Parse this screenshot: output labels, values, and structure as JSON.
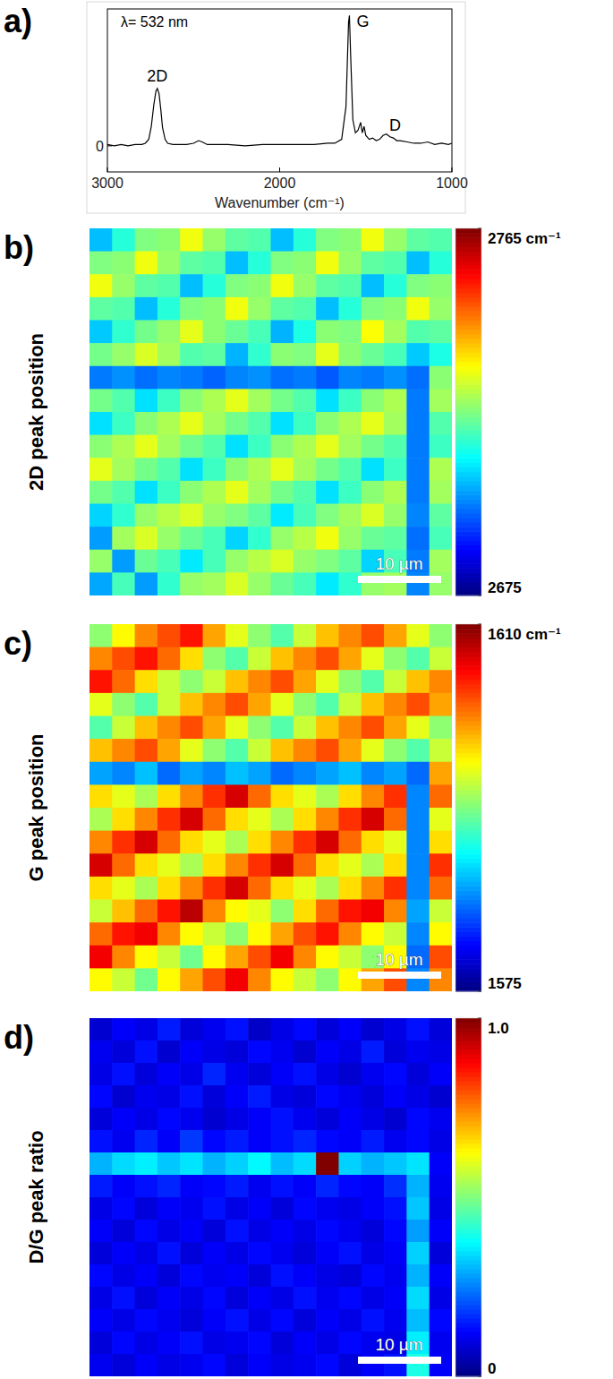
{
  "chart_data": [
    {
      "type": "line",
      "panel": "a)",
      "title": "λ= 532 nm",
      "xlabel": "Wavenumber (cm⁻¹)",
      "color": "#000000",
      "x": [
        3000,
        2960,
        2920,
        2880,
        2840,
        2800,
        2780,
        2760,
        2745,
        2730,
        2718,
        2710,
        2700,
        2690,
        2680,
        2665,
        2650,
        2620,
        2580,
        2540,
        2500,
        2470,
        2450,
        2420,
        2380,
        2300,
        2200,
        2100,
        2000,
        1900,
        1800,
        1720,
        1680,
        1640,
        1615,
        1600,
        1595,
        1588,
        1575,
        1560,
        1545,
        1530,
        1520,
        1510,
        1500,
        1480,
        1460,
        1440,
        1420,
        1400,
        1380,
        1360,
        1340,
        1320,
        1300,
        1260,
        1220,
        1180,
        1140,
        1100,
        1060,
        1020,
        1000
      ],
      "values": [
        0.01,
        0.0,
        0.01,
        0.0,
        0.01,
        0.01,
        0.02,
        0.05,
        0.15,
        0.32,
        0.42,
        0.44,
        0.4,
        0.28,
        0.14,
        0.05,
        0.02,
        0.01,
        0.01,
        0.01,
        0.02,
        0.04,
        0.03,
        0.01,
        0.01,
        0.01,
        0.0,
        0.01,
        0.01,
        0.01,
        0.01,
        0.02,
        0.02,
        0.05,
        0.3,
        0.95,
        1.0,
        0.7,
        0.2,
        0.1,
        0.12,
        0.18,
        0.1,
        0.15,
        0.08,
        0.05,
        0.06,
        0.04,
        0.05,
        0.08,
        0.09,
        0.07,
        0.06,
        0.04,
        0.04,
        0.03,
        0.02,
        0.02,
        0.03,
        0.01,
        0.02,
        0.01,
        0.02
      ],
      "xlim": [
        3000,
        1000
      ],
      "xticks": [
        3000,
        2000,
        1000
      ],
      "ylim": [
        -0.2,
        1.05
      ],
      "yticks": [
        0
      ],
      "annotations": [
        {
          "text": "2D",
          "x": 2710
        },
        {
          "text": "G",
          "x": 1595
        },
        {
          "text": "D",
          "x": 1330
        }
      ]
    },
    {
      "type": "heatmap",
      "panel": "b)",
      "ylabel": "2D peak position",
      "scale_bar": "10 µm",
      "colorbar": {
        "range": [
          2675,
          2765
        ],
        "ticks": [
          {
            "value": 2765,
            "label": "2765 cm⁻¹"
          },
          2675
        ]
      },
      "cells": [
        [
          2703,
          2712,
          2720,
          2721,
          2730,
          2722,
          2717,
          2716,
          2703,
          2712,
          2720,
          2721,
          2730,
          2722,
          2717,
          2716
        ],
        [
          2720,
          2721,
          2730,
          2722,
          2717,
          2716,
          2703,
          2712,
          2720,
          2721,
          2730,
          2722,
          2717,
          2716,
          2703,
          2712
        ],
        [
          2730,
          2722,
          2717,
          2716,
          2703,
          2712,
          2720,
          2721,
          2730,
          2722,
          2717,
          2716,
          2703,
          2712,
          2720,
          2721
        ],
        [
          2717,
          2716,
          2703,
          2712,
          2720,
          2721,
          2730,
          2722,
          2717,
          2716,
          2703,
          2712,
          2720,
          2721,
          2730,
          2722
        ],
        [
          2704,
          2713,
          2719,
          2722,
          2729,
          2721,
          2718,
          2715,
          2702,
          2711,
          2721,
          2720,
          2731,
          2723,
          2716,
          2717
        ],
        [
          2719,
          2722,
          2728,
          2723,
          2716,
          2717,
          2702,
          2713,
          2721,
          2720,
          2729,
          2721,
          2718,
          2715,
          2704,
          2711
        ],
        [
          2697,
          2699,
          2696,
          2698,
          2697,
          2695,
          2698,
          2699,
          2696,
          2697,
          2694,
          2698,
          2697,
          2699,
          2696,
          2721
        ],
        [
          2719,
          2716,
          2706,
          2714,
          2721,
          2724,
          2729,
          2723,
          2719,
          2716,
          2706,
          2714,
          2721,
          2724,
          2697,
          2723
        ],
        [
          2706,
          2714,
          2721,
          2724,
          2729,
          2723,
          2719,
          2716,
          2706,
          2714,
          2721,
          2724,
          2729,
          2723,
          2697,
          2716
        ],
        [
          2721,
          2724,
          2729,
          2723,
          2719,
          2716,
          2706,
          2714,
          2721,
          2724,
          2729,
          2723,
          2719,
          2716,
          2697,
          2714
        ],
        [
          2729,
          2723,
          2719,
          2716,
          2706,
          2714,
          2721,
          2724,
          2729,
          2723,
          2719,
          2716,
          2706,
          2714,
          2697,
          2724
        ],
        [
          2719,
          2716,
          2706,
          2714,
          2721,
          2724,
          2729,
          2723,
          2719,
          2716,
          2706,
          2714,
          2721,
          2724,
          2697,
          2723
        ],
        [
          2705,
          2713,
          2722,
          2725,
          2728,
          2722,
          2720,
          2717,
          2707,
          2715,
          2720,
          2723,
          2728,
          2722,
          2698,
          2717
        ],
        [
          2700,
          2723,
          2728,
          2722,
          2718,
          2715,
          2705,
          2713,
          2722,
          2725,
          2730,
          2722,
          2718,
          2717,
          2696,
          2715
        ],
        [
          2722,
          2700,
          2718,
          2715,
          2707,
          2715,
          2722,
          2725,
          2728,
          2722,
          2720,
          2717,
          2705,
          2715,
          2697,
          2723
        ],
        [
          2701,
          2715,
          2700,
          2713,
          2722,
          2723,
          2728,
          2722,
          2718,
          2715,
          2707,
          2713,
          2722,
          2723,
          2698,
          2722
        ]
      ]
    },
    {
      "type": "heatmap",
      "panel": "c)",
      "ylabel": "G peak position",
      "scale_bar": "10 µm",
      "colorbar": {
        "range": [
          1575,
          1610
        ],
        "ticks": [
          {
            "value": 1610,
            "label": "1610 cm⁻¹"
          },
          1575
        ]
      },
      "cells": [
        [
          1593,
          1597,
          1601,
          1603,
          1605,
          1600,
          1596,
          1593,
          1591,
          1595,
          1599,
          1601,
          1603,
          1600,
          1596,
          1593
        ],
        [
          1601,
          1603,
          1605,
          1602,
          1598,
          1593,
          1591,
          1595,
          1599,
          1601,
          1603,
          1600,
          1596,
          1593,
          1591,
          1595
        ],
        [
          1605,
          1602,
          1598,
          1595,
          1593,
          1595,
          1599,
          1601,
          1603,
          1600,
          1596,
          1593,
          1591,
          1595,
          1599,
          1601
        ],
        [
          1596,
          1593,
          1591,
          1595,
          1599,
          1601,
          1603,
          1600,
          1596,
          1593,
          1591,
          1595,
          1599,
          1601,
          1603,
          1600
        ],
        [
          1591,
          1595,
          1599,
          1601,
          1603,
          1600,
          1596,
          1593,
          1591,
          1595,
          1599,
          1601,
          1603,
          1600,
          1596,
          1593
        ],
        [
          1599,
          1601,
          1603,
          1600,
          1596,
          1593,
          1591,
          1595,
          1599,
          1601,
          1603,
          1600,
          1596,
          1593,
          1591,
          1595
        ],
        [
          1585,
          1584,
          1586,
          1583,
          1585,
          1584,
          1586,
          1585,
          1583,
          1584,
          1585,
          1586,
          1584,
          1585,
          1583,
          1600
        ],
        [
          1598,
          1596,
          1594,
          1598,
          1601,
          1604,
          1607,
          1602,
          1598,
          1596,
          1594,
          1598,
          1601,
          1604,
          1584,
          1602
        ],
        [
          1594,
          1598,
          1601,
          1604,
          1607,
          1602,
          1598,
          1596,
          1594,
          1598,
          1601,
          1604,
          1607,
          1602,
          1584,
          1596
        ],
        [
          1601,
          1604,
          1607,
          1602,
          1598,
          1596,
          1594,
          1598,
          1601,
          1604,
          1607,
          1602,
          1598,
          1596,
          1584,
          1598
        ],
        [
          1607,
          1602,
          1598,
          1596,
          1594,
          1598,
          1601,
          1604,
          1607,
          1602,
          1598,
          1596,
          1594,
          1598,
          1584,
          1604
        ],
        [
          1598,
          1596,
          1594,
          1598,
          1601,
          1604,
          1607,
          1602,
          1598,
          1596,
          1594,
          1598,
          1601,
          1604,
          1584,
          1602
        ],
        [
          1595,
          1599,
          1602,
          1605,
          1608,
          1601,
          1597,
          1596,
          1593,
          1598,
          1602,
          1605,
          1606,
          1601,
          1585,
          1595
        ],
        [
          1602,
          1605,
          1606,
          1601,
          1597,
          1595,
          1593,
          1597,
          1600,
          1603,
          1605,
          1601,
          1597,
          1595,
          1584,
          1597
        ],
        [
          1606,
          1601,
          1597,
          1595,
          1592,
          1597,
          1600,
          1603,
          1606,
          1601,
          1597,
          1595,
          1593,
          1597,
          1583,
          1603
        ],
        [
          1597,
          1595,
          1592,
          1597,
          1600,
          1603,
          1606,
          1601,
          1597,
          1595,
          1593,
          1597,
          1600,
          1603,
          1584,
          1601
        ]
      ]
    },
    {
      "type": "heatmap",
      "panel": "d)",
      "ylabel": "D/G peak ratio",
      "scale_bar": "10 µm",
      "colorbar": {
        "range": [
          0,
          1
        ],
        "ticks": [
          {
            "value": 1,
            "label": "1.0"
          },
          0
        ]
      },
      "cells": [
        [
          0.08,
          0.12,
          0.1,
          0.15,
          0.09,
          0.11,
          0.14,
          0.07,
          0.1,
          0.13,
          0.09,
          0.12,
          0.08,
          0.1,
          0.14,
          0.09
        ],
        [
          0.11,
          0.09,
          0.14,
          0.08,
          0.12,
          0.1,
          0.09,
          0.13,
          0.11,
          0.08,
          0.12,
          0.1,
          0.15,
          0.09,
          0.11,
          0.1
        ],
        [
          0.1,
          0.14,
          0.09,
          0.12,
          0.1,
          0.16,
          0.11,
          0.09,
          0.12,
          0.14,
          0.1,
          0.08,
          0.11,
          0.13,
          0.09,
          0.12
        ],
        [
          0.13,
          0.08,
          0.11,
          0.1,
          0.14,
          0.09,
          0.12,
          0.15,
          0.1,
          0.09,
          0.13,
          0.11,
          0.09,
          0.12,
          0.1,
          0.08
        ],
        [
          0.09,
          0.12,
          0.1,
          0.13,
          0.11,
          0.08,
          0.1,
          0.12,
          0.14,
          0.11,
          0.09,
          0.12,
          0.1,
          0.08,
          0.13,
          0.11
        ],
        [
          0.14,
          0.11,
          0.16,
          0.12,
          0.18,
          0.13,
          0.15,
          0.12,
          0.14,
          0.16,
          0.13,
          0.12,
          0.15,
          0.11,
          0.13,
          0.1
        ],
        [
          0.3,
          0.34,
          0.36,
          0.32,
          0.35,
          0.3,
          0.33,
          0.37,
          0.31,
          0.34,
          1.0,
          0.33,
          0.3,
          0.32,
          0.35,
          0.12
        ],
        [
          0.15,
          0.12,
          0.14,
          0.16,
          0.12,
          0.13,
          0.15,
          0.11,
          0.14,
          0.12,
          0.16,
          0.13,
          0.12,
          0.17,
          0.3,
          0.11
        ],
        [
          0.1,
          0.13,
          0.09,
          0.12,
          0.11,
          0.14,
          0.1,
          0.12,
          0.09,
          0.13,
          0.11,
          0.1,
          0.12,
          0.14,
          0.32,
          0.1
        ],
        [
          0.12,
          0.09,
          0.13,
          0.1,
          0.12,
          0.09,
          0.14,
          0.1,
          0.12,
          0.1,
          0.13,
          0.11,
          0.09,
          0.13,
          0.28,
          0.12
        ],
        [
          0.09,
          0.12,
          0.1,
          0.14,
          0.09,
          0.12,
          0.1,
          0.13,
          0.11,
          0.09,
          0.12,
          0.14,
          0.1,
          0.12,
          0.33,
          0.09
        ],
        [
          0.13,
          0.1,
          0.12,
          0.09,
          0.13,
          0.11,
          0.12,
          0.09,
          0.14,
          0.12,
          0.1,
          0.09,
          0.13,
          0.11,
          0.3,
          0.12
        ],
        [
          0.1,
          0.14,
          0.09,
          0.12,
          0.1,
          0.13,
          0.09,
          0.12,
          0.1,
          0.14,
          0.11,
          0.13,
          0.1,
          0.12,
          0.34,
          0.1
        ],
        [
          0.12,
          0.1,
          0.13,
          0.11,
          0.09,
          0.12,
          0.14,
          0.1,
          0.13,
          0.09,
          0.12,
          0.1,
          0.14,
          0.11,
          0.31,
          0.13
        ],
        [
          0.09,
          0.13,
          0.1,
          0.12,
          0.14,
          0.1,
          0.11,
          0.13,
          0.09,
          0.12,
          0.1,
          0.13,
          0.11,
          0.1,
          0.36,
          0.11
        ],
        [
          0.11,
          0.09,
          0.12,
          0.1,
          0.11,
          0.13,
          0.09,
          0.12,
          0.1,
          0.11,
          0.13,
          0.09,
          0.12,
          0.14,
          0.4,
          0.12
        ]
      ]
    }
  ]
}
